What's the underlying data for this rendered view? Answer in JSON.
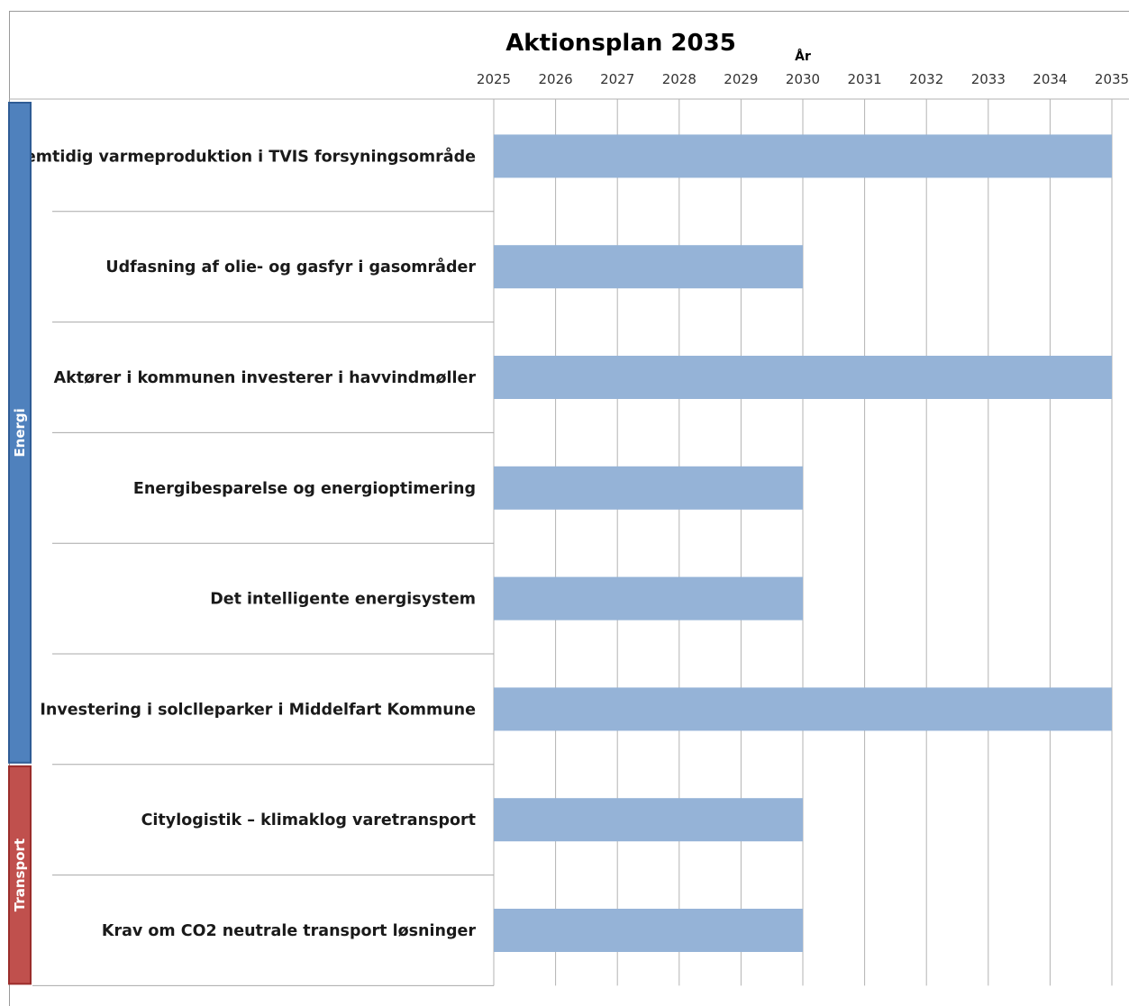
{
  "chart_data": {
    "type": "gantt",
    "title": "Aktionsplan 2035",
    "xlabel": "År",
    "x_ticks": [
      "2025",
      "2026",
      "2027",
      "2028",
      "2029",
      "2030",
      "2031",
      "2032",
      "2033",
      "2034",
      "2035"
    ],
    "xlim": [
      2025,
      2035
    ],
    "grid": true,
    "groups": [
      {
        "name": "Energi",
        "color": "#4f81bd",
        "border": "#2e5c95",
        "rows": [
          0,
          5
        ]
      },
      {
        "name": "Transport",
        "color": "#c0504d",
        "border": "#9a2c2a",
        "rows": [
          6,
          7
        ]
      }
    ],
    "bar_color": "#95b3d7",
    "tasks": [
      {
        "label": "Fremtidig varmeproduktion i TVIS forsyningsområde",
        "start": 2025,
        "end": 2035,
        "group": "Energi"
      },
      {
        "label": "Udfasning af olie- og gasfyr i gasområder",
        "start": 2025,
        "end": 2030,
        "group": "Energi"
      },
      {
        "label": "Aktører i kommunen investerer i havvindmøller",
        "start": 2025,
        "end": 2035,
        "group": "Energi"
      },
      {
        "label": "Energibesparelse og energioptimering",
        "start": 2025,
        "end": 2030,
        "group": "Energi"
      },
      {
        "label": "Det intelligente energisystem",
        "start": 2025,
        "end": 2030,
        "group": "Energi"
      },
      {
        "label": "Investering i solclleparker i Middelfart Kommune",
        "start": 2025,
        "end": 2035,
        "group": "Energi"
      },
      {
        "label": "Citylogistik – klimaklog varetransport",
        "start": 2025,
        "end": 2030,
        "group": "Transport"
      },
      {
        "label": "Krav om CO2 neutrale transport løsninger",
        "start": 2025,
        "end": 2030,
        "group": "Transport"
      }
    ]
  }
}
